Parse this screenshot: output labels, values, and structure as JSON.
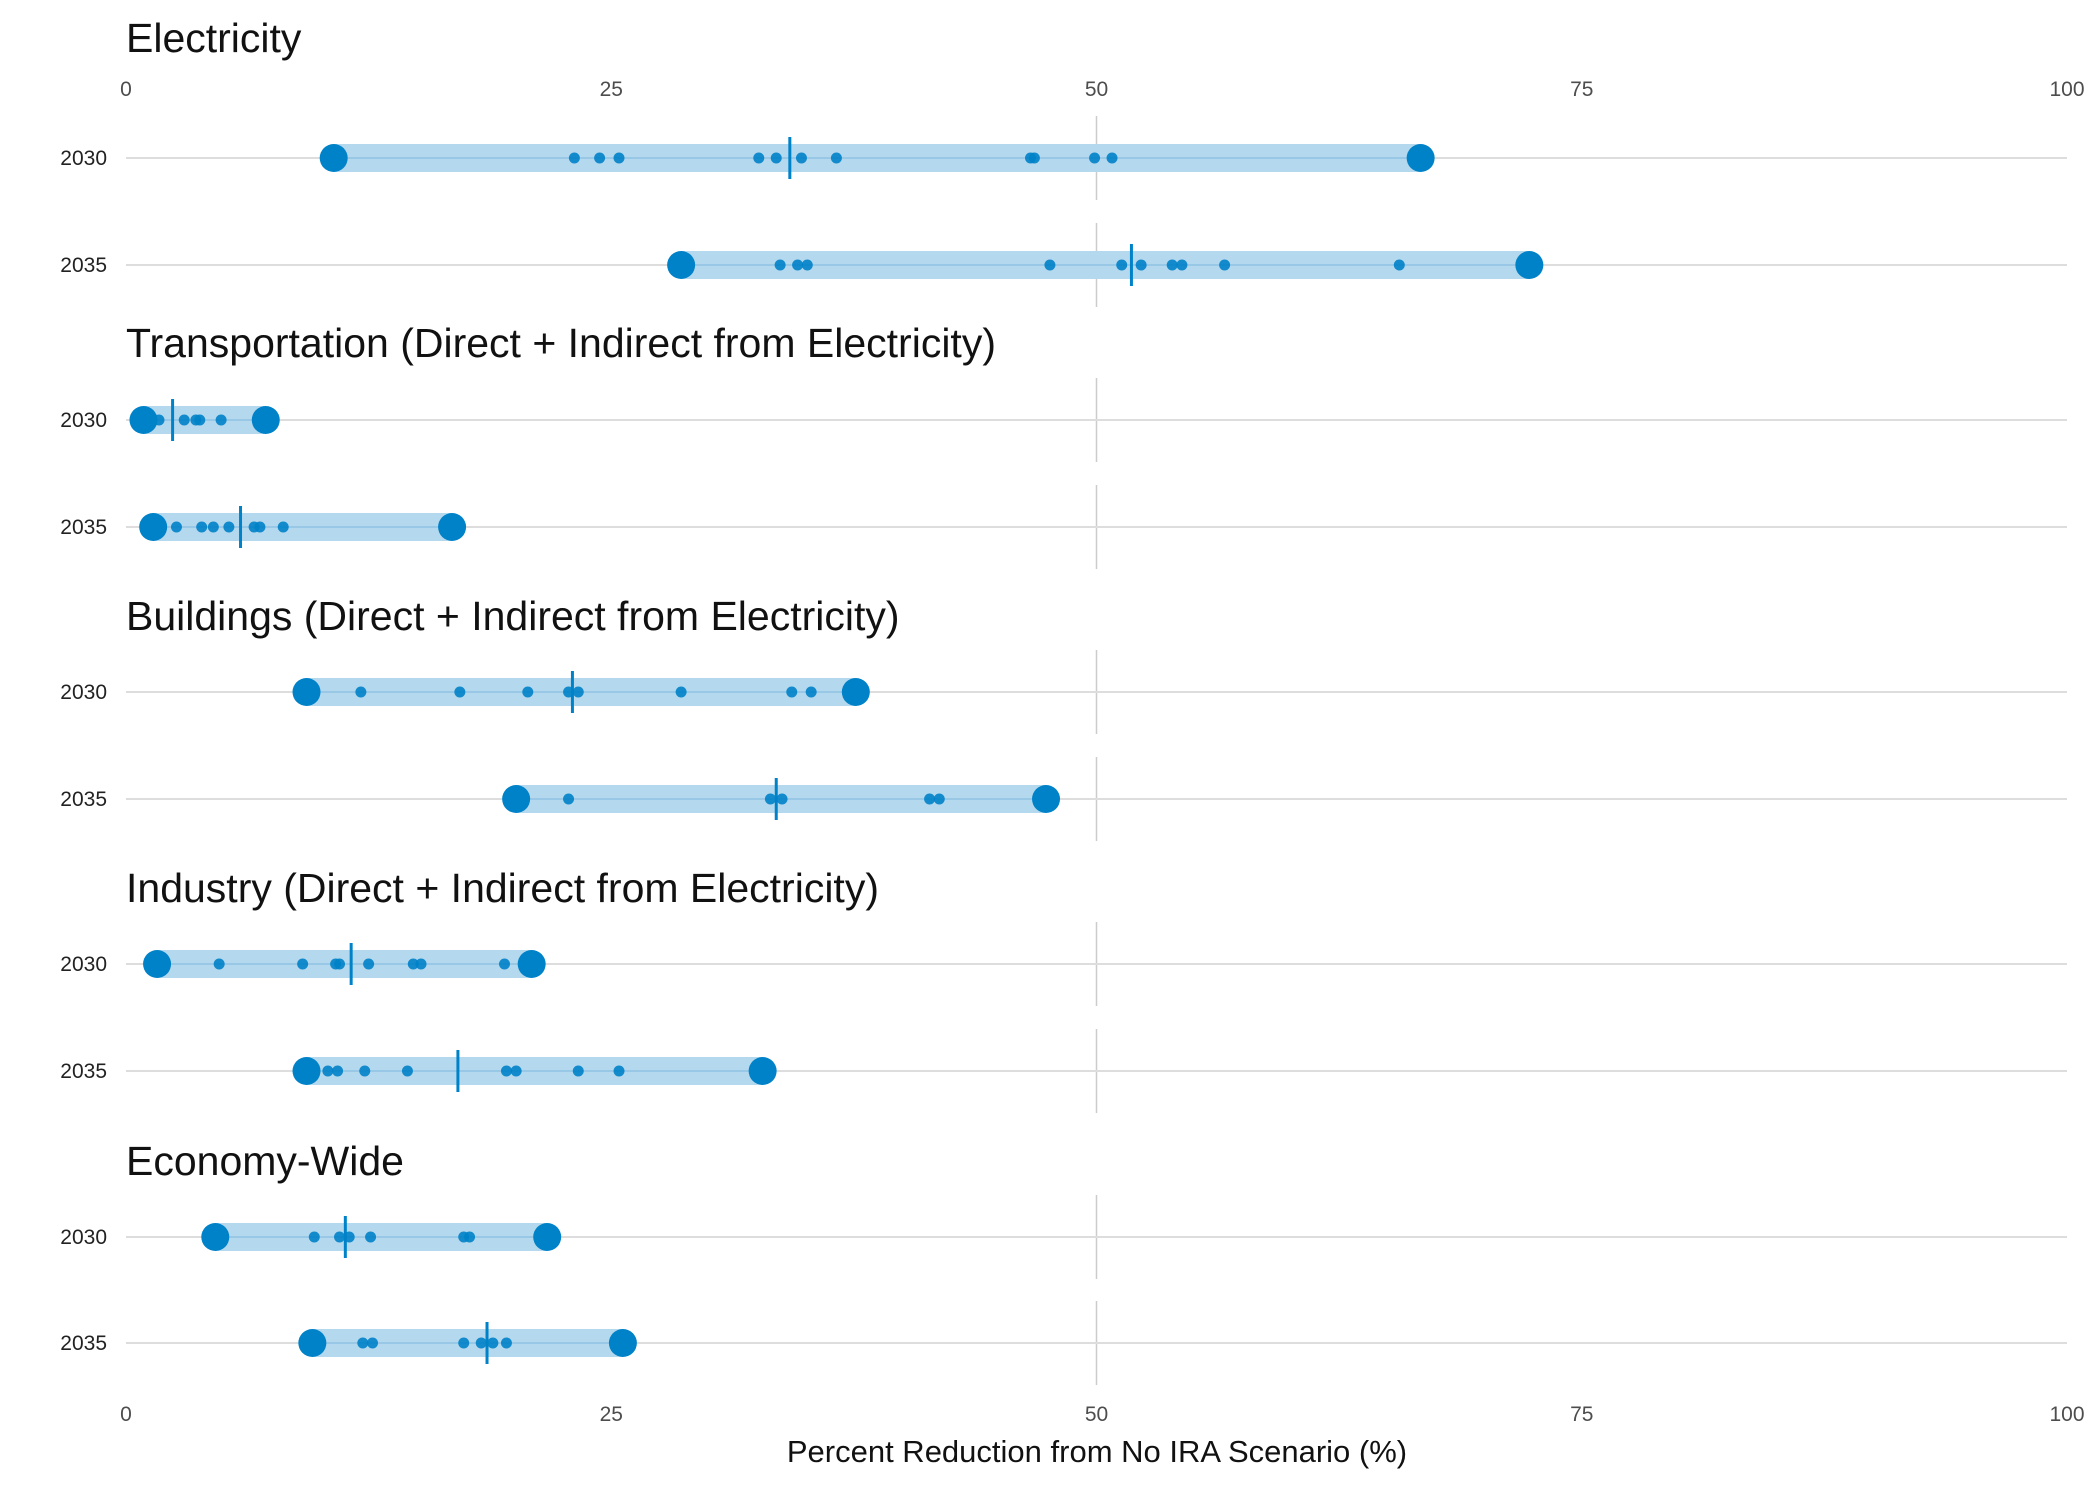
{
  "chart_data": {
    "type": "scatter",
    "xlabel": "Percent Reduction from No IRA Scenario (%)",
    "xlim": [
      0,
      100
    ],
    "xticks": [
      0,
      25,
      50,
      75,
      100
    ],
    "reference_line": 50,
    "colors": {
      "point": "#0082C8",
      "range": "#B4D8EE",
      "gridline": "#DDDDDD",
      "refline": "#CCCCCC"
    },
    "panels": [
      {
        "title": "Electricity",
        "rows": [
          {
            "year": "2030",
            "min": 10.7,
            "max": 66.7,
            "median": 34.2,
            "points": [
              23.1,
              24.4,
              25.4,
              32.6,
              33.5,
              34.8,
              36.6,
              46.6,
              46.8,
              49.9,
              50.8
            ]
          },
          {
            "year": "2035",
            "min": 28.6,
            "max": 72.3,
            "median": 51.8,
            "points": [
              33.7,
              34.6,
              35.1,
              47.6,
              51.3,
              52.3,
              53.9,
              54.4,
              56.6,
              65.6
            ]
          }
        ]
      },
      {
        "title": "Transportation (Direct + Indirect from Electricity)",
        "rows": [
          {
            "year": "2030",
            "min": 0.9,
            "max": 7.2,
            "median": 2.4,
            "points": [
              1.7,
              3.0,
              3.6,
              3.8,
              4.9
            ]
          },
          {
            "year": "2035",
            "min": 1.4,
            "max": 16.8,
            "median": 5.9,
            "points": [
              2.6,
              3.9,
              4.5,
              5.3,
              6.6,
              6.9,
              8.1
            ]
          }
        ]
      },
      {
        "title": "Buildings (Direct + Indirect from Electricity)",
        "rows": [
          {
            "year": "2030",
            "min": 9.3,
            "max": 37.6,
            "median": 23.0,
            "points": [
              12.1,
              17.2,
              20.7,
              22.8,
              23.3,
              28.6,
              34.3,
              35.3
            ]
          },
          {
            "year": "2035",
            "min": 20.1,
            "max": 47.4,
            "median": 33.5,
            "points": [
              22.8,
              33.2,
              33.8,
              41.4,
              41.9
            ]
          }
        ]
      },
      {
        "title": "Industry (Direct + Indirect from Electricity)",
        "rows": [
          {
            "year": "2030",
            "min": 1.6,
            "max": 20.9,
            "median": 11.6,
            "points": [
              4.8,
              9.1,
              10.8,
              11.0,
              12.5,
              14.8,
              15.2,
              19.5
            ]
          },
          {
            "year": "2035",
            "min": 9.3,
            "max": 32.8,
            "median": 17.1,
            "points": [
              10.4,
              10.9,
              12.3,
              14.5,
              19.6,
              20.1,
              23.3,
              25.4
            ]
          }
        ]
      },
      {
        "title": "Economy-Wide",
        "rows": [
          {
            "year": "2030",
            "min": 4.6,
            "max": 21.7,
            "median": 11.3,
            "points": [
              9.7,
              11.0,
              11.5,
              12.6,
              17.4,
              17.7
            ]
          },
          {
            "year": "2035",
            "min": 9.6,
            "max": 25.6,
            "median": 18.6,
            "points": [
              12.2,
              12.7,
              17.4,
              18.3,
              18.9,
              19.6
            ]
          }
        ]
      }
    ]
  }
}
